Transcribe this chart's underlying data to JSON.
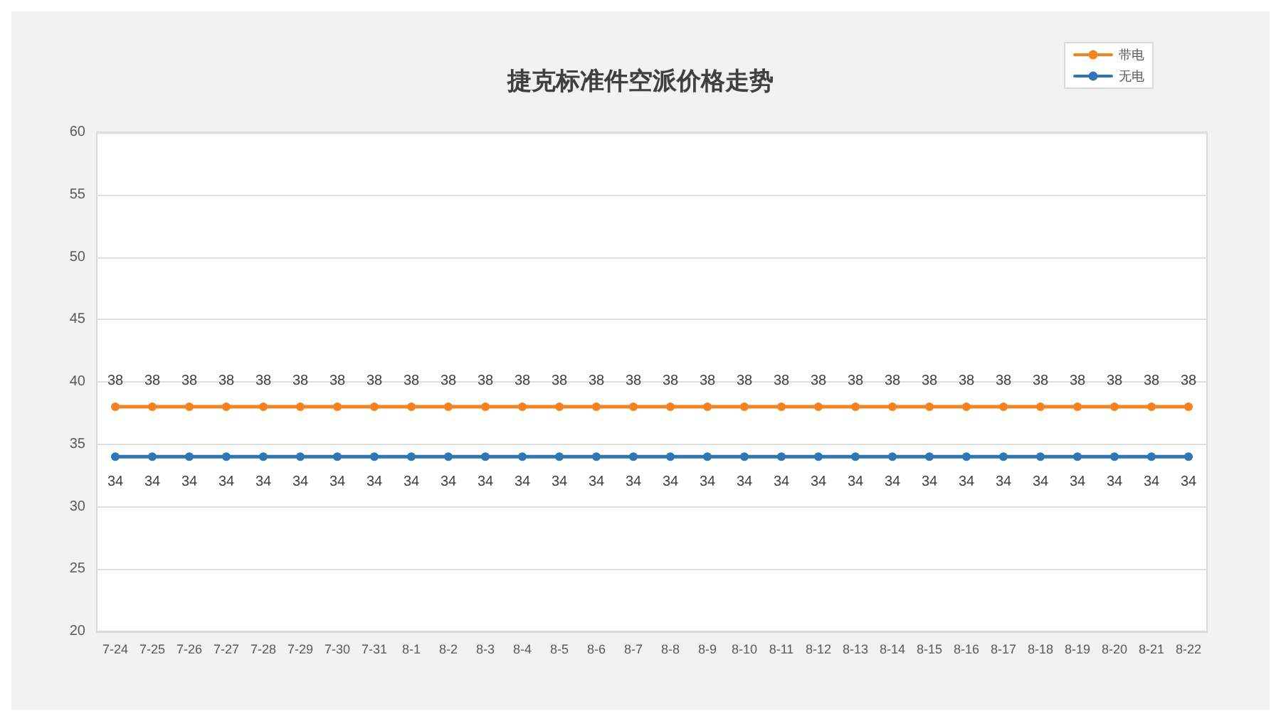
{
  "chart_data": {
    "type": "line",
    "title": "捷克标准件空派价格走势",
    "categories": [
      "7-24",
      "7-25",
      "7-26",
      "7-27",
      "7-28",
      "7-29",
      "7-30",
      "7-31",
      "8-1",
      "8-2",
      "8-3",
      "8-4",
      "8-5",
      "8-6",
      "8-7",
      "8-8",
      "8-9",
      "8-10",
      "8-11",
      "8-12",
      "8-13",
      "8-14",
      "8-15",
      "8-16",
      "8-17",
      "8-18",
      "8-19",
      "8-20",
      "8-21",
      "8-22"
    ],
    "series": [
      {
        "name": "带电",
        "color": "#f5821f",
        "values": [
          38,
          38,
          38,
          38,
          38,
          38,
          38,
          38,
          38,
          38,
          38,
          38,
          38,
          38,
          38,
          38,
          38,
          38,
          38,
          38,
          38,
          38,
          38,
          38,
          38,
          38,
          38,
          38,
          38,
          38
        ]
      },
      {
        "name": "无电",
        "color": "#2e75b6",
        "values": [
          34,
          34,
          34,
          34,
          34,
          34,
          34,
          34,
          34,
          34,
          34,
          34,
          34,
          34,
          34,
          34,
          34,
          34,
          34,
          34,
          34,
          34,
          34,
          34,
          34,
          34,
          34,
          34,
          34,
          34
        ]
      }
    ],
    "ylim": [
      20,
      60
    ],
    "yticks": [
      20,
      25,
      30,
      35,
      40,
      45,
      50,
      55,
      60
    ],
    "grid": "y",
    "legend": "top right",
    "marker": "circle",
    "line_style": "solid",
    "data_labels": true
  }
}
